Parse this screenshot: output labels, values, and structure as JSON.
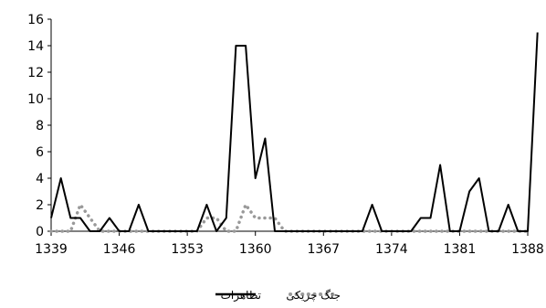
{
  "chart_data": {
    "type": "line",
    "title": "",
    "xlabel": "",
    "ylabel": "",
    "ylim": [
      0,
      16
    ],
    "yticks": [
      0,
      2,
      4,
      6,
      8,
      10,
      12,
      14,
      16
    ],
    "xlim": [
      1339,
      1388
    ],
    "xticks": [
      1339,
      1346,
      1353,
      1360,
      1367,
      1374,
      1381,
      1388
    ],
    "legend_position": "bottom",
    "grid": false,
    "series": [
      {
        "name": "تظاهرات",
        "style": "solid",
        "color": "#000000",
        "points": [
          [
            1339,
            1
          ],
          [
            1340,
            4
          ],
          [
            1341,
            1
          ],
          [
            1342,
            1
          ],
          [
            1343,
            0
          ],
          [
            1344,
            0
          ],
          [
            1345,
            1
          ],
          [
            1346,
            0
          ],
          [
            1347,
            0
          ],
          [
            1348,
            2
          ],
          [
            1349,
            0
          ],
          [
            1350,
            0
          ],
          [
            1351,
            0
          ],
          [
            1352,
            0
          ],
          [
            1353,
            0
          ],
          [
            1354,
            0
          ],
          [
            1355,
            2
          ],
          [
            1356,
            0
          ],
          [
            1357,
            1
          ],
          [
            1358,
            14
          ],
          [
            1359,
            14
          ],
          [
            1360,
            4
          ],
          [
            1361,
            7
          ],
          [
            1362,
            0
          ],
          [
            1363,
            0
          ],
          [
            1364,
            0
          ],
          [
            1365,
            0
          ],
          [
            1366,
            0
          ],
          [
            1367,
            0
          ],
          [
            1368,
            0
          ],
          [
            1369,
            0
          ],
          [
            1370,
            0
          ],
          [
            1371,
            0
          ],
          [
            1372,
            2
          ],
          [
            1373,
            0
          ],
          [
            1374,
            0
          ],
          [
            1375,
            0
          ],
          [
            1376,
            0
          ],
          [
            1377,
            1
          ],
          [
            1378,
            1
          ],
          [
            1379,
            5
          ],
          [
            1380,
            0
          ],
          [
            1381,
            0
          ],
          [
            1382,
            3
          ],
          [
            1383,
            4
          ],
          [
            1384,
            0
          ],
          [
            1385,
            0
          ],
          [
            1386,
            2
          ],
          [
            1387,
            0
          ],
          [
            1388,
            0
          ],
          [
            1389,
            15
          ]
        ]
      },
      {
        "name": "جنگ چریکی",
        "style": "dotted",
        "color": "#999999",
        "points": [
          [
            1339,
            0
          ],
          [
            1340,
            0
          ],
          [
            1341,
            0
          ],
          [
            1342,
            2
          ],
          [
            1343,
            1
          ],
          [
            1344,
            0
          ],
          [
            1345,
            0
          ],
          [
            1346,
            0
          ],
          [
            1347,
            0
          ],
          [
            1348,
            0
          ],
          [
            1349,
            0
          ],
          [
            1350,
            0
          ],
          [
            1351,
            0
          ],
          [
            1352,
            0
          ],
          [
            1353,
            0
          ],
          [
            1354,
            0
          ],
          [
            1355,
            1
          ],
          [
            1356,
            1
          ],
          [
            1357,
            0
          ],
          [
            1358,
            0
          ],
          [
            1359,
            2
          ],
          [
            1360,
            1
          ],
          [
            1361,
            1
          ],
          [
            1362,
            1
          ],
          [
            1363,
            0
          ],
          [
            1364,
            0
          ],
          [
            1365,
            0
          ],
          [
            1366,
            0
          ],
          [
            1367,
            0
          ],
          [
            1368,
            0
          ],
          [
            1369,
            0
          ],
          [
            1370,
            0
          ],
          [
            1371,
            0
          ],
          [
            1372,
            0
          ],
          [
            1373,
            0
          ],
          [
            1374,
            0
          ],
          [
            1375,
            0
          ],
          [
            1376,
            0
          ],
          [
            1377,
            0
          ],
          [
            1378,
            0
          ],
          [
            1379,
            0
          ],
          [
            1380,
            0
          ],
          [
            1381,
            0
          ],
          [
            1382,
            0
          ],
          [
            1383,
            0
          ],
          [
            1384,
            0
          ],
          [
            1385,
            0
          ],
          [
            1386,
            0
          ],
          [
            1387,
            0
          ],
          [
            1388,
            0
          ]
        ]
      }
    ]
  }
}
